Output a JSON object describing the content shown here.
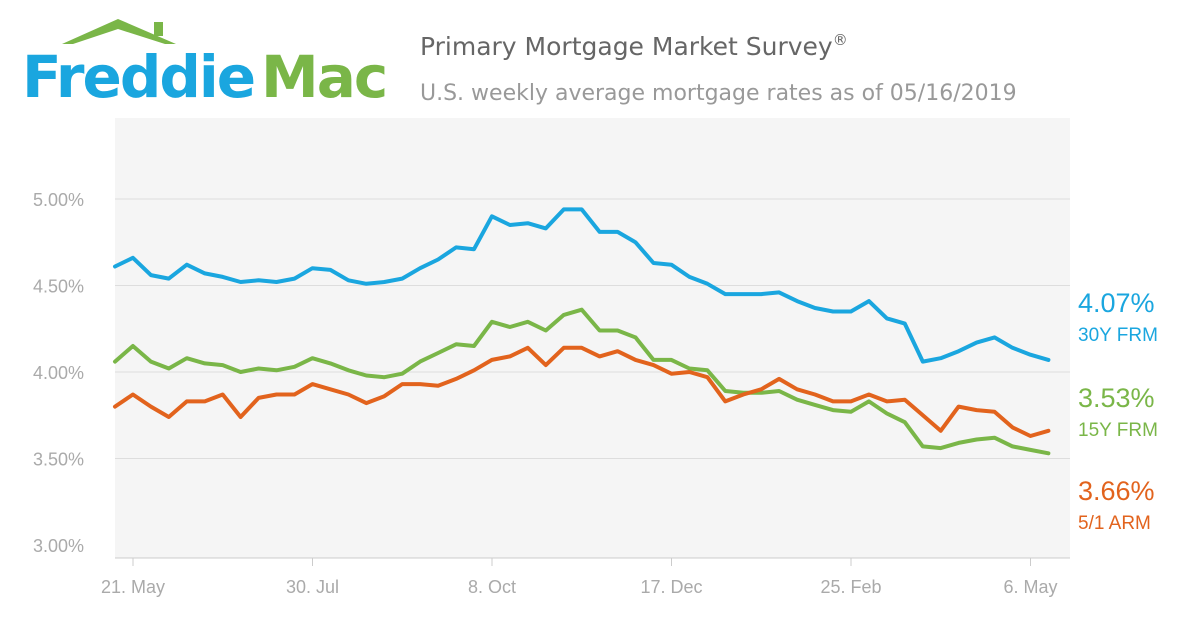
{
  "logo": {
    "word1": "Freddie",
    "word2": "Mac",
    "word1_color": "#1aa6df",
    "word2_color": "#7ab648",
    "roof_color": "#7ab648"
  },
  "header": {
    "title": "Primary Mortgage Market Survey",
    "title_mark": "®",
    "subtitle": "U.S. weekly average mortgage rates as of 05/16/2019"
  },
  "colors": {
    "plot_background": "#f5f5f5",
    "gridline": "#ffffff",
    "axis_text": "#aaaaaa",
    "axis_line": "#cccccc"
  },
  "chart_data": {
    "type": "line",
    "x_tick_labels": [
      "21. May",
      "30. Jul",
      "8. Oct",
      "17. Dec",
      "25. Feb",
      "6. May"
    ],
    "x_tick_weeks": [
      0,
      10,
      20,
      30,
      40,
      50
    ],
    "x_note": "weekly observations starting the week of 17 May 2018 through 16 May 2019",
    "ylim": [
      3.0,
      5.0
    ],
    "y_ticks": [
      3.0,
      3.5,
      4.0,
      4.5,
      5.0
    ],
    "y_tick_labels": [
      "3.00%",
      "3.50%",
      "4.00%",
      "4.50%",
      "5.00%"
    ],
    "grid": true,
    "legend": "right, inline labels",
    "series": [
      {
        "name": "30Y FRM",
        "latest_label": "4.07%",
        "color": "#1aa6df",
        "values": [
          4.61,
          4.66,
          4.56,
          4.54,
          4.62,
          4.57,
          4.55,
          4.52,
          4.53,
          4.52,
          4.54,
          4.6,
          4.59,
          4.53,
          4.51,
          4.52,
          4.54,
          4.6,
          4.65,
          4.72,
          4.71,
          4.9,
          4.85,
          4.86,
          4.83,
          4.94,
          4.94,
          4.81,
          4.81,
          4.75,
          4.63,
          4.62,
          4.55,
          4.51,
          4.45,
          4.45,
          4.45,
          4.46,
          4.41,
          4.37,
          4.35,
          4.35,
          4.41,
          4.31,
          4.28,
          4.06,
          4.08,
          4.12,
          4.17,
          4.2,
          4.14,
          4.1,
          4.07
        ]
      },
      {
        "name": "15Y FRM",
        "latest_label": "3.53%",
        "color": "#7ab648",
        "values": [
          4.06,
          4.15,
          4.06,
          4.02,
          4.08,
          4.05,
          4.04,
          4.0,
          4.02,
          4.01,
          4.03,
          4.08,
          4.05,
          4.01,
          3.98,
          3.97,
          3.99,
          4.06,
          4.11,
          4.16,
          4.15,
          4.29,
          4.26,
          4.29,
          4.24,
          4.33,
          4.36,
          4.24,
          4.24,
          4.2,
          4.07,
          4.07,
          4.02,
          4.01,
          3.89,
          3.88,
          3.88,
          3.89,
          3.84,
          3.81,
          3.78,
          3.77,
          3.83,
          3.76,
          3.71,
          3.57,
          3.56,
          3.59,
          3.61,
          3.62,
          3.57,
          3.55,
          3.53
        ]
      },
      {
        "name": "5/1 ARM",
        "latest_label": "3.66%",
        "color": "#e2631d",
        "values": [
          3.8,
          3.87,
          3.8,
          3.74,
          3.83,
          3.83,
          3.87,
          3.74,
          3.85,
          3.87,
          3.87,
          3.93,
          3.9,
          3.87,
          3.82,
          3.86,
          3.93,
          3.93,
          3.92,
          3.96,
          4.01,
          4.07,
          4.09,
          4.14,
          4.04,
          4.14,
          4.14,
          4.09,
          4.12,
          4.07,
          4.04,
          3.99,
          4.0,
          3.97,
          3.83,
          3.87,
          3.9,
          3.96,
          3.9,
          3.87,
          3.83,
          3.83,
          3.87,
          3.83,
          3.84,
          3.75,
          3.66,
          3.8,
          3.78,
          3.77,
          3.68,
          3.63,
          3.66
        ]
      }
    ]
  }
}
